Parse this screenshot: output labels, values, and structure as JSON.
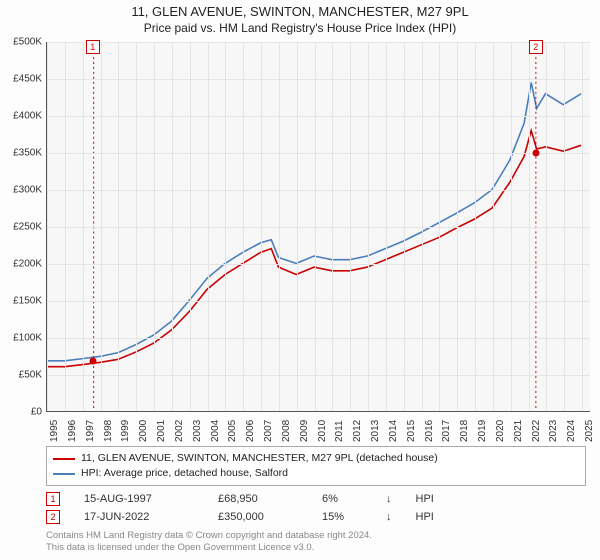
{
  "title": "11, GLEN AVENUE, SWINTON, MANCHESTER, M27 9PL",
  "subtitle": "Price paid vs. HM Land Registry's House Price Index (HPI)",
  "chart": {
    "type": "line",
    "background_color": "#f7f7f7",
    "grid_color": "#e5e5e5",
    "axis_color": "#555555",
    "xlim": [
      1995,
      2025.5
    ],
    "ylim": [
      0,
      500000
    ],
    "ytick_step": 50000,
    "yticks": [
      "£0",
      "£50K",
      "£100K",
      "£150K",
      "£200K",
      "£250K",
      "£300K",
      "£350K",
      "£400K",
      "£450K",
      "£500K"
    ],
    "xticks": [
      1995,
      1996,
      1997,
      1998,
      1999,
      2000,
      2001,
      2002,
      2003,
      2004,
      2005,
      2006,
      2007,
      2008,
      2009,
      2010,
      2011,
      2012,
      2013,
      2014,
      2015,
      2016,
      2017,
      2018,
      2019,
      2020,
      2021,
      2022,
      2023,
      2024,
      2025
    ],
    "label_fontsize": 10,
    "series": [
      {
        "name": "price_paid",
        "label": "11, GLEN AVENUE, SWINTON, MANCHESTER, M27 9PL (detached house)",
        "color": "#cc0000",
        "line_width": 1.6,
        "x": [
          1995,
          1996,
          1997,
          1998,
          1999,
          2000,
          2001,
          2002,
          2003,
          2004,
          2005,
          2006,
          2007,
          2007.6,
          2008,
          2009,
          2010,
          2011,
          2012,
          2013,
          2014,
          2015,
          2016,
          2017,
          2018,
          2019,
          2020,
          2021,
          2021.8,
          2022.2,
          2022.5,
          2023,
          2024,
          2025
        ],
        "y": [
          60000,
          60000,
          63000,
          66000,
          70000,
          80000,
          92000,
          110000,
          135000,
          165000,
          185000,
          200000,
          215000,
          220000,
          195000,
          185000,
          195000,
          190000,
          190000,
          195000,
          205000,
          215000,
          225000,
          235000,
          248000,
          260000,
          275000,
          310000,
          345000,
          380000,
          355000,
          358000,
          352000,
          360000
        ]
      },
      {
        "name": "hpi",
        "label": "HPI: Average price, detached house, Salford",
        "color": "#4a7ebb",
        "line_width": 1.6,
        "x": [
          1995,
          1996,
          1997,
          1998,
          1999,
          2000,
          2001,
          2002,
          2003,
          2004,
          2005,
          2006,
          2007,
          2007.6,
          2008,
          2009,
          2010,
          2011,
          2012,
          2013,
          2014,
          2015,
          2016,
          2017,
          2018,
          2019,
          2020,
          2021,
          2021.8,
          2022.2,
          2022.5,
          2023,
          2024,
          2025
        ],
        "y": [
          68000,
          68000,
          71000,
          74000,
          79000,
          90000,
          103000,
          122000,
          150000,
          180000,
          200000,
          215000,
          228000,
          232000,
          208000,
          200000,
          210000,
          205000,
          205000,
          210000,
          220000,
          230000,
          242000,
          255000,
          268000,
          282000,
          300000,
          340000,
          390000,
          445000,
          410000,
          430000,
          415000,
          430000
        ]
      }
    ],
    "markers": [
      {
        "n": 1,
        "x": 1997.62,
        "y": 68950,
        "dash_color": "#cc0000"
      },
      {
        "n": 2,
        "x": 2022.46,
        "y": 350000,
        "dash_color": "#cc0000"
      }
    ]
  },
  "legend": {
    "items": [
      {
        "color": "#cc0000",
        "label": "11, GLEN AVENUE, SWINTON, MANCHESTER, M27 9PL (detached house)"
      },
      {
        "color": "#4a7ebb",
        "label": "HPI: Average price, detached house, Salford"
      }
    ]
  },
  "transactions": [
    {
      "n": "1",
      "date": "15-AUG-1997",
      "price": "£68,950",
      "delta": "6%",
      "arrow": "↓",
      "vs": "HPI"
    },
    {
      "n": "2",
      "date": "17-JUN-2022",
      "price": "£350,000",
      "delta": "15%",
      "arrow": "↓",
      "vs": "HPI"
    }
  ],
  "attribution": {
    "line1": "Contains HM Land Registry data © Crown copyright and database right 2024.",
    "line2": "This data is licensed under the Open Government Licence v3.0."
  }
}
